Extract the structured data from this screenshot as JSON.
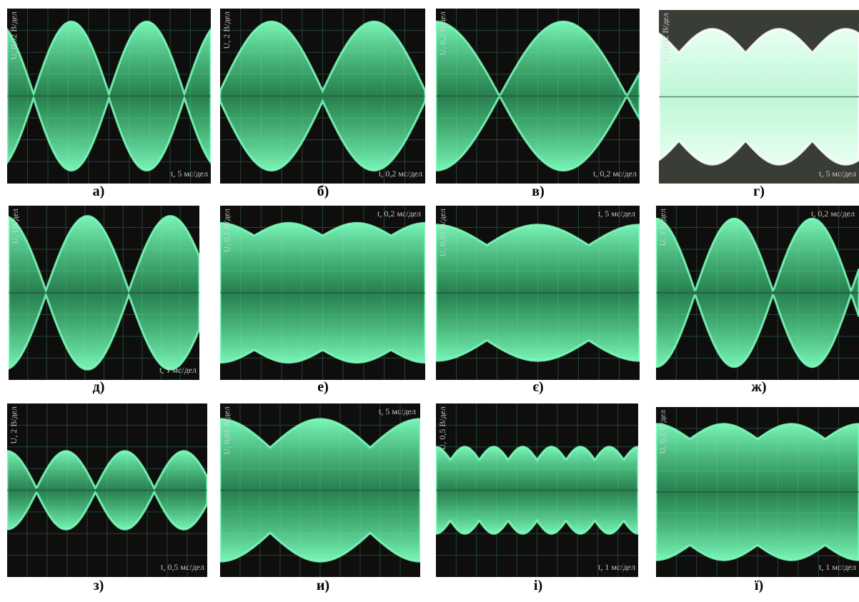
{
  "colors": {
    "screen_background": "#0e0e0c",
    "trace": "#3ddc84",
    "trace_glow": "#7fffbf",
    "grid": "#24443a",
    "label": "#d6d6d6"
  },
  "panels": [
    {
      "caption": "а)",
      "y_label": "U, 0,02 В/дел",
      "t_label": "t, 5 мс/дел",
      "t_pos": "bottom",
      "lobes": 2.7,
      "mod_depth": 0.97,
      "amplitude": 0.85,
      "phase": 0.15,
      "bright": false
    },
    {
      "caption": "б)",
      "y_label": "U, 2 В/дел",
      "t_label": "t, 0,2 мс/дел",
      "t_pos": "bottom",
      "lobes": 2.0,
      "mod_depth": 0.93,
      "amplitude": 0.85,
      "phase": 0.5,
      "bright": false
    },
    {
      "caption": "в)",
      "y_label": "U, 0,2 В/дел",
      "t_label": "t, 0,2 мс/дел",
      "t_pos": "bottom",
      "lobes": 1.6,
      "mod_depth": 1.0,
      "amplitude": 0.85,
      "phase": 0.0,
      "bright": false
    },
    {
      "caption": "г)",
      "y_label": "U, 0,02 В/дел",
      "t_label": "t, 5 мс/дел",
      "t_pos": "bottom",
      "lobes": 3.0,
      "mod_depth": 0.35,
      "amplitude": 0.78,
      "phase": 0.2,
      "bright": true
    },
    {
      "caption": "д)",
      "y_label": "U, 1В/дел",
      "t_label": "t, 1 мс/дел",
      "t_pos": "bottom",
      "lobes": 2.3,
      "mod_depth": 0.97,
      "amplitude": 0.88,
      "phase": 0.05,
      "bright": false
    },
    {
      "caption": "е)",
      "y_label": "U, 0,1 В/дел",
      "t_label": "t, 0,2 мс/дел",
      "t_pos": "top",
      "lobes": 3.0,
      "mod_depth": 0.18,
      "amplitude": 0.8,
      "phase": 0.0,
      "bright": false
    },
    {
      "caption": "є)",
      "y_label": "U, 0,01 В/дел",
      "t_label": "t, 5 мс/дел",
      "t_pos": "top",
      "lobes": 2.0,
      "mod_depth": 0.3,
      "amplitude": 0.78,
      "phase": 0.0,
      "bright": false
    },
    {
      "caption": "ж)",
      "y_label": "U, 1 В/дел",
      "t_label": "t, 0,2 мс/дел",
      "t_pos": "top",
      "lobes": 2.6,
      "mod_depth": 0.98,
      "amplitude": 0.85,
      "phase": 0.0,
      "bright": false
    },
    {
      "caption": "з)",
      "y_label": "U, 2 В/дел",
      "t_label": "t, 0,5 мс/дел",
      "t_pos": "bottom",
      "lobes": 3.4,
      "mod_depth": 0.95,
      "amplitude": 0.45,
      "phase": 0.0,
      "bright": false
    },
    {
      "caption": "и)",
      "y_label": "U, 0,01 В/дел",
      "t_label": "t, 5 мс/дел",
      "t_pos": "top",
      "lobes": 2.0,
      "mod_depth": 0.4,
      "amplitude": 0.82,
      "phase": 0.0,
      "bright": false
    },
    {
      "caption": "і)",
      "y_label": "U, 0,5 В/дел",
      "t_label": "t, 1 мс/дел",
      "t_pos": "bottom",
      "lobes": 7.0,
      "mod_depth": 0.3,
      "amplitude": 0.5,
      "phase": 0.0,
      "bright": false
    },
    {
      "caption": "ї)",
      "y_label": "U, 0,1 В/дел",
      "t_label": "t, 1 мс/дел",
      "t_pos": "bottom",
      "lobes": 3.0,
      "mod_depth": 0.22,
      "amplitude": 0.8,
      "phase": 0.0,
      "bright": false
    }
  ]
}
